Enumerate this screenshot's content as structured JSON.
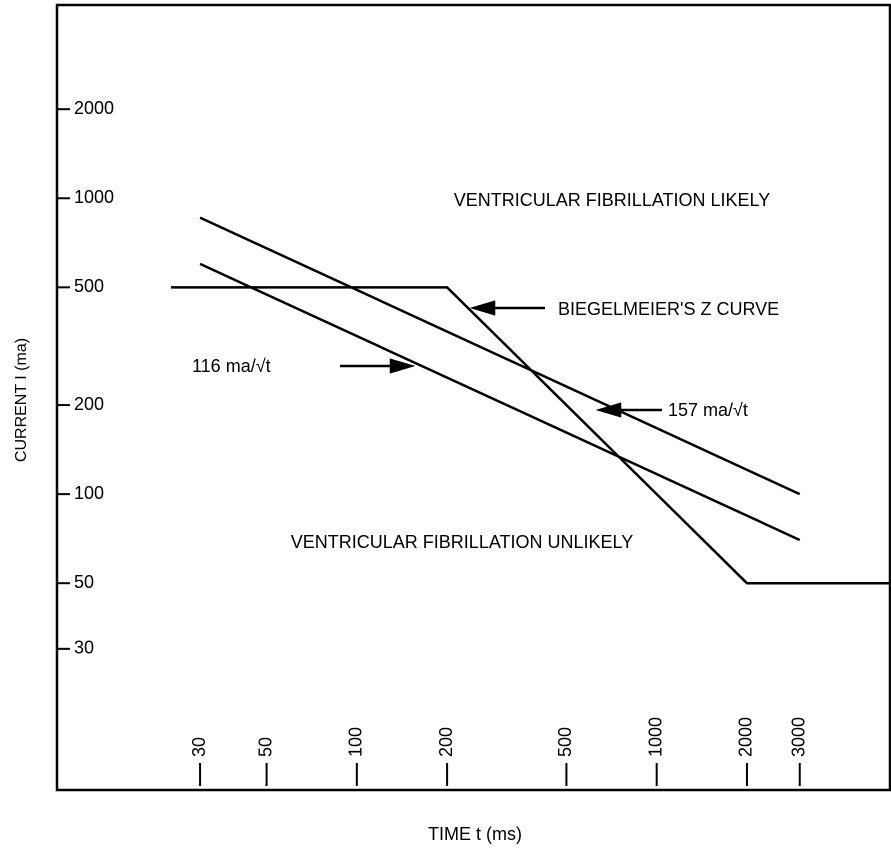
{
  "chart_data": {
    "type": "line",
    "xlabel": "TIME t (ms)",
    "ylabel": "CURRENT I (ma)",
    "xscale": "log",
    "yscale": "log",
    "xlim": [
      10,
      6000
    ],
    "ylim": [
      10,
      4500
    ],
    "xticks": [
      30,
      50,
      100,
      200,
      500,
      1000,
      2000,
      3000
    ],
    "yticks": [
      30,
      50,
      100,
      200,
      500,
      1000,
      2000
    ],
    "series": [
      {
        "name": "157 ma/√t",
        "color": "#000000",
        "x": [
          30,
          3000
        ],
        "values": [
          860,
          100
        ]
      },
      {
        "name": "116 ma/√t",
        "color": "#000000",
        "x": [
          30,
          3000
        ],
        "values": [
          600,
          70
        ]
      },
      {
        "name": "BIEGELMEIER'S Z CURVE",
        "color": "#000000",
        "x": [
          24,
          200,
          2000,
          6000
        ],
        "values": [
          500,
          500,
          50,
          50
        ]
      }
    ],
    "annotations": [
      "VENTRICULAR FIBRILLATION LIKELY",
      "VENTRICULAR FIBRILLATION UNLIKELY"
    ]
  }
}
